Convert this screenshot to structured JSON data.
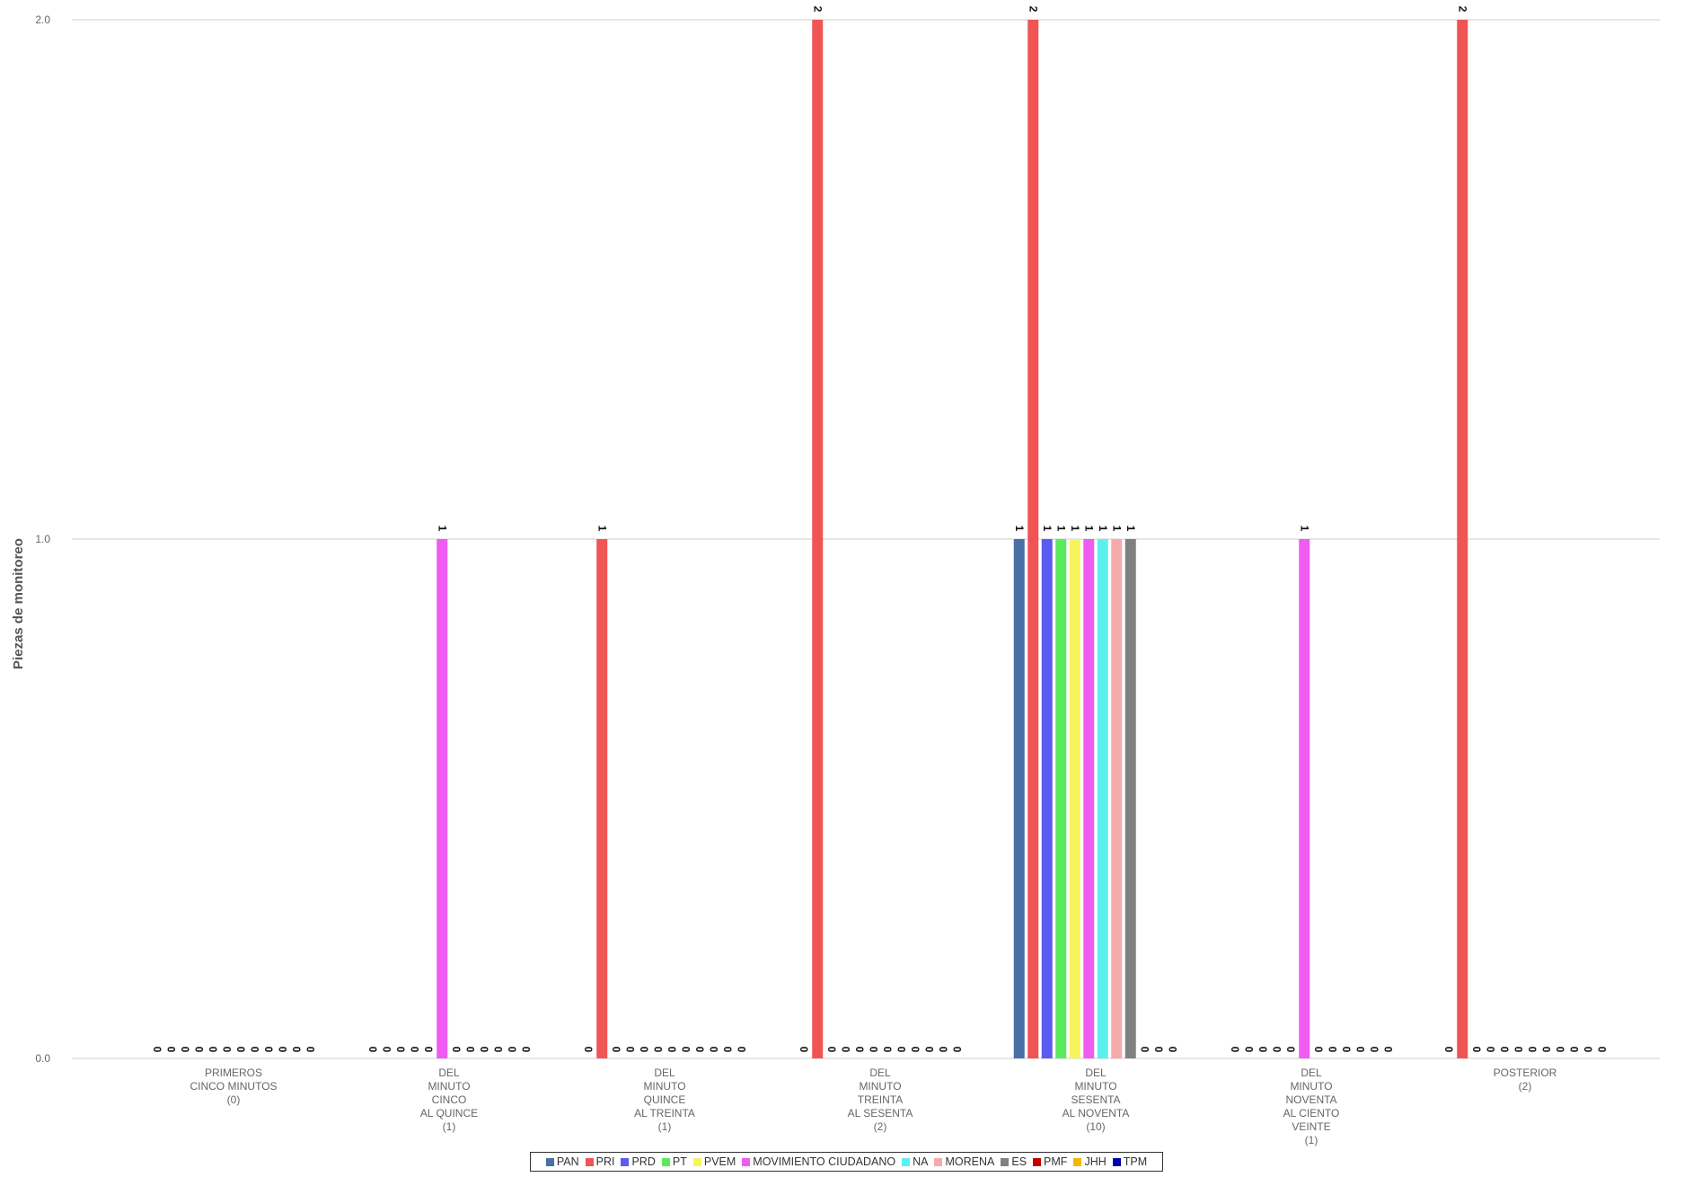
{
  "chart_data": {
    "type": "bar",
    "ylabel": "Piezas de monitoreo",
    "ylim": [
      0,
      2
    ],
    "yticks": [
      "0.0",
      "1.0",
      "2.0"
    ],
    "grid": true,
    "legend_position": "bottom",
    "categories": [
      [
        "PRIMEROS",
        "CINCO MINUTOS",
        "(0)"
      ],
      [
        "DEL",
        "MINUTO",
        "CINCO",
        "AL QUINCE",
        "(1)"
      ],
      [
        "DEL",
        "MINUTO",
        "QUINCE",
        "AL TREINTA",
        "(1)"
      ],
      [
        "DEL",
        "MINUTO",
        "TREINTA",
        "AL SESENTA",
        "(2)"
      ],
      [
        "DEL",
        "MINUTO",
        "SESENTA",
        "AL NOVENTA",
        "(10)"
      ],
      [
        "DEL",
        "MINUTO",
        "NOVENTA",
        "AL CIENTO",
        "VEINTE",
        "(1)"
      ],
      [
        "POSTERIOR",
        "(2)"
      ]
    ],
    "series": [
      {
        "name": "PAN",
        "color": "#4a6fa5",
        "values": [
          0,
          0,
          0,
          0,
          1,
          0,
          0
        ]
      },
      {
        "name": "PRI",
        "color": "#f05454",
        "values": [
          0,
          0,
          1,
          2,
          2,
          0,
          2
        ]
      },
      {
        "name": "PRD",
        "color": "#5b5bf0",
        "values": [
          0,
          0,
          0,
          0,
          1,
          0,
          0
        ]
      },
      {
        "name": "PT",
        "color": "#5bea5b",
        "values": [
          0,
          0,
          0,
          0,
          1,
          0,
          0
        ]
      },
      {
        "name": "PVEM",
        "color": "#f5f55b",
        "values": [
          0,
          0,
          0,
          0,
          1,
          0,
          0
        ]
      },
      {
        "name": "MOVIMIENTO CIUDADANO",
        "color": "#f05bf0",
        "values": [
          0,
          1,
          0,
          0,
          1,
          1,
          0
        ]
      },
      {
        "name": "NA",
        "color": "#5bf0f0",
        "values": [
          0,
          0,
          0,
          0,
          1,
          0,
          0
        ]
      },
      {
        "name": "MORENA",
        "color": "#f5aaaa",
        "values": [
          0,
          0,
          0,
          0,
          1,
          0,
          0
        ]
      },
      {
        "name": "ES",
        "color": "#808080",
        "values": [
          0,
          0,
          0,
          0,
          1,
          0,
          0
        ]
      },
      {
        "name": "PMF",
        "color": "#c00000",
        "values": [
          0,
          0,
          0,
          0,
          0,
          0,
          0
        ]
      },
      {
        "name": "JHH",
        "color": "#f5b800",
        "values": [
          0,
          0,
          0,
          0,
          0,
          0,
          0
        ]
      },
      {
        "name": "TPM",
        "color": "#0000b0",
        "values": [
          0,
          0,
          0,
          0,
          0,
          0,
          0
        ]
      }
    ]
  }
}
